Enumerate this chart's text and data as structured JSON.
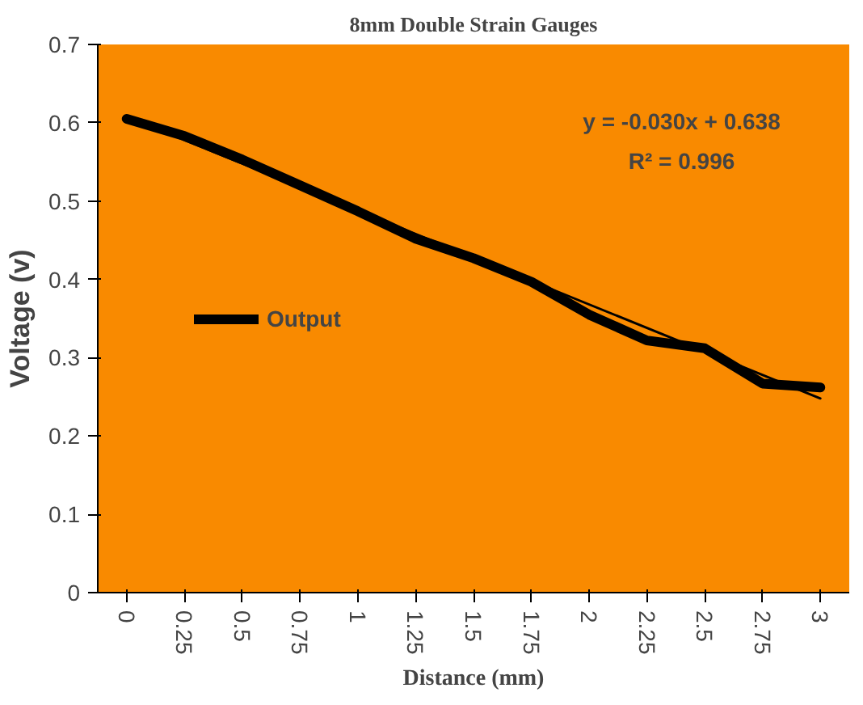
{
  "chart_data": {
    "type": "line",
    "title": "8mm Double Strain Gauges",
    "xlabel": "Distance (mm)",
    "ylabel": "Voltage (v)",
    "x": [
      0,
      0.25,
      0.5,
      0.75,
      1,
      1.25,
      1.5,
      1.75,
      2,
      2.25,
      2.5,
      2.75,
      3
    ],
    "xlim": [
      -0.125,
      3.125
    ],
    "xticks": [
      0,
      0.25,
      0.5,
      0.75,
      1,
      1.25,
      1.5,
      1.75,
      2,
      2.25,
      2.5,
      2.75,
      3
    ],
    "ylim": [
      0,
      0.7
    ],
    "yticks": [
      0,
      0.1,
      0.2,
      0.3,
      0.4,
      0.5,
      0.6,
      0.7
    ],
    "series": [
      {
        "name": "Output",
        "color": "#000000",
        "values": [
          0.605,
          0.583,
          0.553,
          0.52,
          0.487,
          0.452,
          0.427,
          0.397,
          0.355,
          0.322,
          0.312,
          0.267,
          0.262
        ]
      },
      {
        "type": "line",
        "color": "#000000",
        "x": [
          0,
          3
        ],
        "values": [
          0.608,
          0.248
        ]
      }
    ],
    "annotations": [
      "y = -0.030x + 0.638",
      "R² = 0.996"
    ],
    "legend": "left",
    "grid": false,
    "marker": "none",
    "line_style": "solid"
  }
}
